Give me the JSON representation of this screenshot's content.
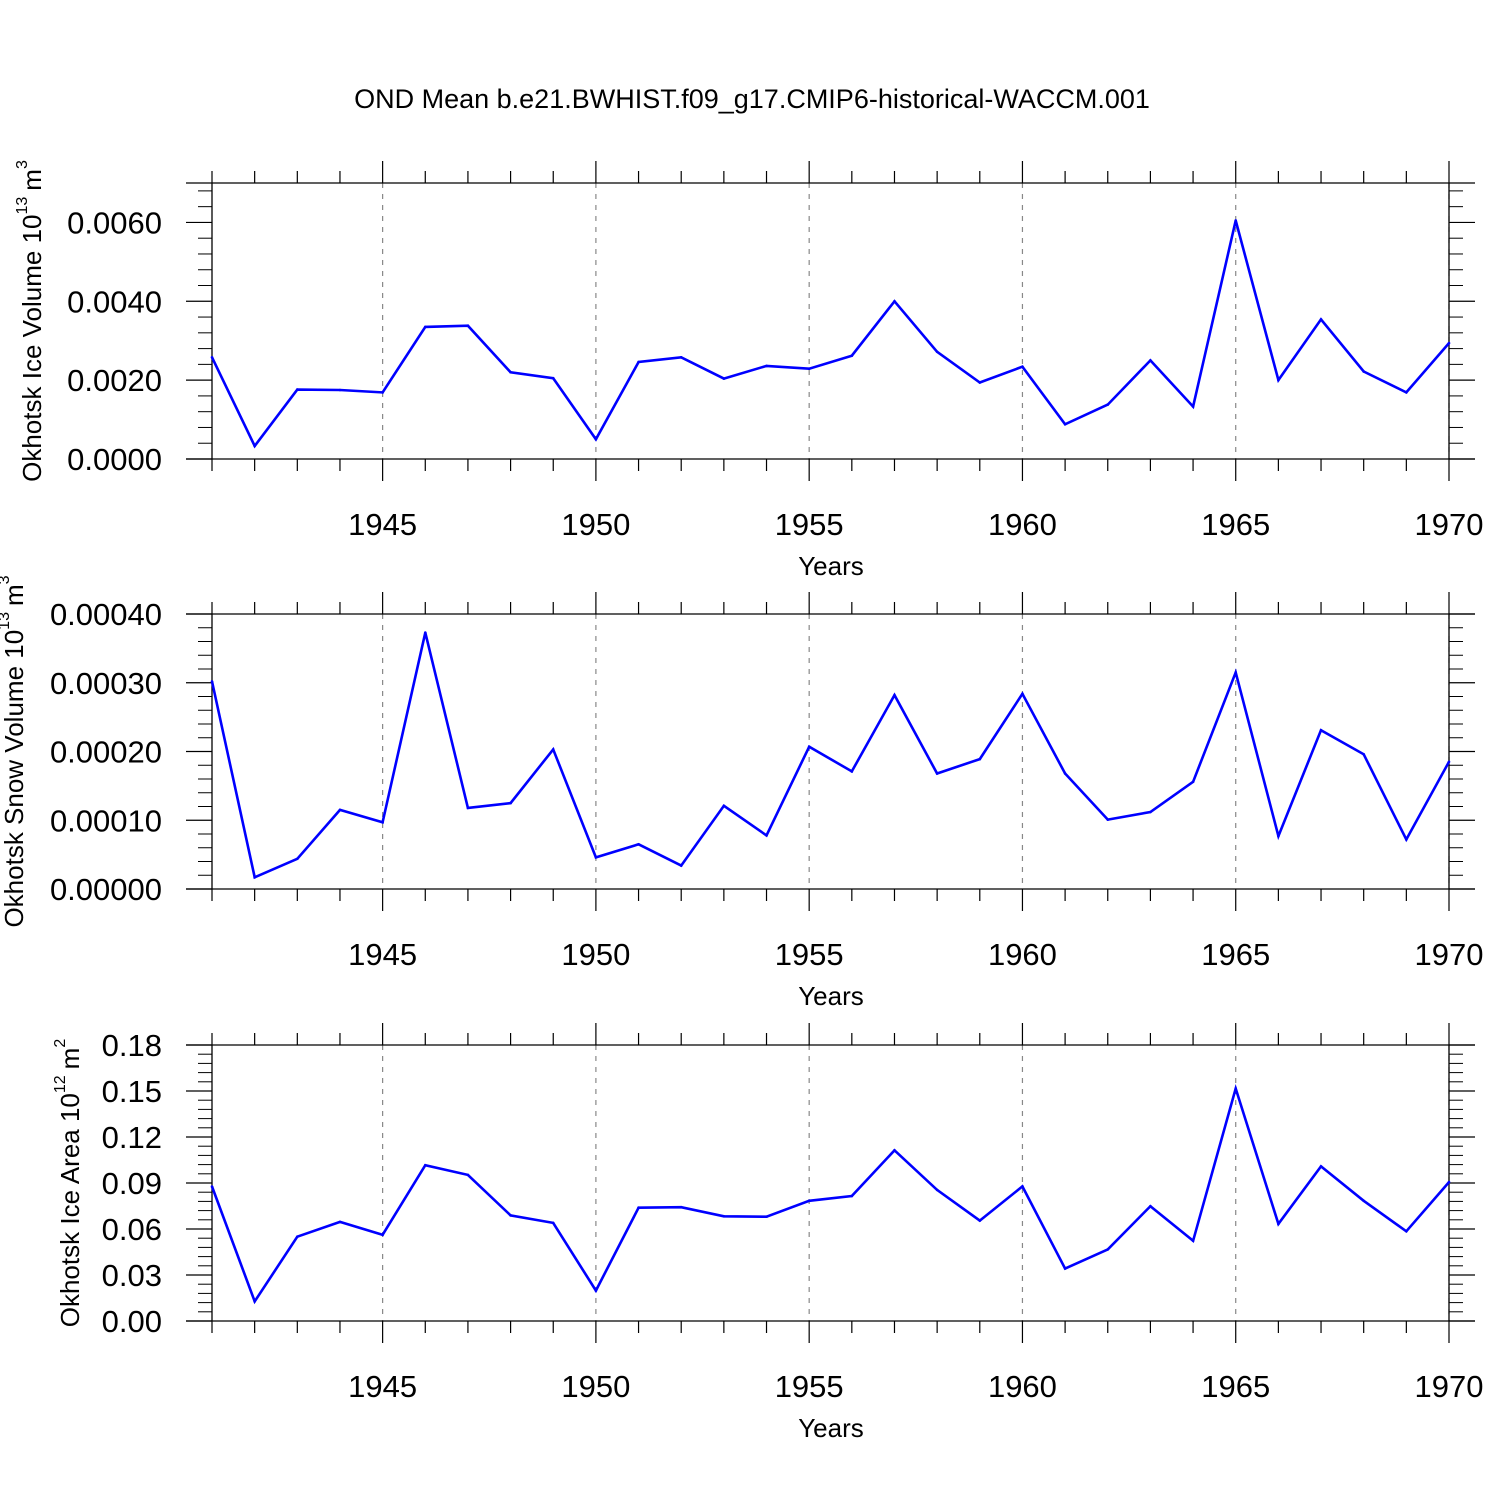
{
  "title": "OND Mean b.e21.BWHIST.f09_g17.CMIP6-historical-WACCM.001",
  "colors": {
    "series": "#0000ff",
    "axis": "#000000",
    "grid": "#888888"
  },
  "chart_data": [
    {
      "type": "line",
      "title": "OND Mean b.e21.BWHIST.f09_g17.CMIP6-historical-WACCM.001",
      "xlabel": "Years",
      "ylabel": "Okhotsk Ice Volume 10",
      "ylabel_exp": "13",
      "ylabel_unit": "m",
      "ylabel_unit_exp": "3",
      "xlim": [
        1941,
        1970
      ],
      "ylim": [
        0.0,
        0.007
      ],
      "x_ticks": [
        1945,
        1950,
        1955,
        1960,
        1965,
        1970
      ],
      "x_tick_labels": [
        "1945",
        "1950",
        "1955",
        "1960",
        "1965",
        "1970"
      ],
      "y_ticks": [
        0.0,
        0.002,
        0.004,
        0.006
      ],
      "y_tick_labels": [
        "0.0000",
        "0.0020",
        "0.0040",
        "0.0060"
      ],
      "grid": "vertical dashed at major x ticks",
      "x": [
        1941,
        1942,
        1943,
        1944,
        1945,
        1946,
        1947,
        1948,
        1949,
        1950,
        1951,
        1952,
        1953,
        1954,
        1955,
        1956,
        1957,
        1958,
        1959,
        1960,
        1961,
        1962,
        1963,
        1964,
        1965,
        1966,
        1967,
        1968,
        1969,
        1970
      ],
      "values": [
        0.00258,
        0.00033,
        0.00176,
        0.00175,
        0.00169,
        0.00335,
        0.00338,
        0.0022,
        0.00205,
        0.0005,
        0.00246,
        0.00258,
        0.00204,
        0.00236,
        0.00229,
        0.00262,
        0.004,
        0.00272,
        0.00194,
        0.00234,
        0.00088,
        0.00138,
        0.0025,
        0.00133,
        0.00605,
        0.002,
        0.00354,
        0.00222,
        0.00169,
        0.00294
      ]
    },
    {
      "type": "line",
      "xlabel": "Years",
      "ylabel": "Okhotsk Snow Volume 10",
      "ylabel_exp": "13",
      "ylabel_unit": "m",
      "ylabel_unit_exp": "3",
      "xlim": [
        1941,
        1970
      ],
      "ylim": [
        0.0,
        0.0004
      ],
      "x_ticks": [
        1945,
        1950,
        1955,
        1960,
        1965,
        1970
      ],
      "x_tick_labels": [
        "1945",
        "1950",
        "1955",
        "1960",
        "1965",
        "1970"
      ],
      "y_ticks": [
        0.0,
        0.0001,
        0.0002,
        0.0003,
        0.0004
      ],
      "y_tick_labels": [
        "0.00000",
        "0.00010",
        "0.00020",
        "0.00030",
        "0.00040"
      ],
      "grid": "vertical dashed at major x ticks",
      "x": [
        1941,
        1942,
        1943,
        1944,
        1945,
        1946,
        1947,
        1948,
        1949,
        1950,
        1951,
        1952,
        1953,
        1954,
        1955,
        1956,
        1957,
        1958,
        1959,
        1960,
        1961,
        1962,
        1963,
        1964,
        1965,
        1966,
        1967,
        1968,
        1969,
        1970
      ],
      "values": [
        0.000302,
        1.7e-05,
        4.4e-05,
        0.000115,
        9.7e-05,
        0.000373,
        0.000118,
        0.000125,
        0.000203,
        4.6e-05,
        6.5e-05,
        3.4e-05,
        0.000121,
        7.8e-05,
        0.000207,
        0.000171,
        0.000282,
        0.000168,
        0.000189,
        0.000284,
        0.000168,
        0.000101,
        0.000112,
        0.000156,
        0.000315,
        7.7e-05,
        0.000231,
        0.000196,
        7.2e-05,
        0.000185
      ]
    },
    {
      "type": "line",
      "xlabel": "Years",
      "ylabel": "Okhotsk Ice Area 10",
      "ylabel_exp": "12",
      "ylabel_unit": "m",
      "ylabel_unit_exp": "2",
      "xlim": [
        1941,
        1970
      ],
      "ylim": [
        0.0,
        0.18
      ],
      "x_ticks": [
        1945,
        1950,
        1955,
        1960,
        1965,
        1970
      ],
      "x_tick_labels": [
        "1945",
        "1950",
        "1955",
        "1960",
        "1965",
        "1970"
      ],
      "y_ticks": [
        0.0,
        0.03,
        0.06,
        0.09,
        0.12,
        0.15,
        0.18
      ],
      "y_tick_labels": [
        "0.00",
        "0.03",
        "0.06",
        "0.09",
        "0.12",
        "0.15",
        "0.18"
      ],
      "grid": "vertical dashed at major x ticks",
      "x": [
        1941,
        1942,
        1943,
        1944,
        1945,
        1946,
        1947,
        1948,
        1949,
        1950,
        1951,
        1952,
        1953,
        1954,
        1955,
        1956,
        1957,
        1958,
        1959,
        1960,
        1961,
        1962,
        1963,
        1964,
        1965,
        1966,
        1967,
        1968,
        1969,
        1970
      ],
      "values": [
        0.0877,
        0.0128,
        0.055,
        0.0646,
        0.0562,
        0.1016,
        0.0953,
        0.0689,
        0.064,
        0.0198,
        0.0739,
        0.0742,
        0.0683,
        0.068,
        0.0784,
        0.0815,
        0.1113,
        0.0855,
        0.0655,
        0.0878,
        0.0342,
        0.0467,
        0.0749,
        0.0523,
        0.1516,
        0.0633,
        0.1008,
        0.0784,
        0.0585,
        0.0906
      ]
    }
  ]
}
